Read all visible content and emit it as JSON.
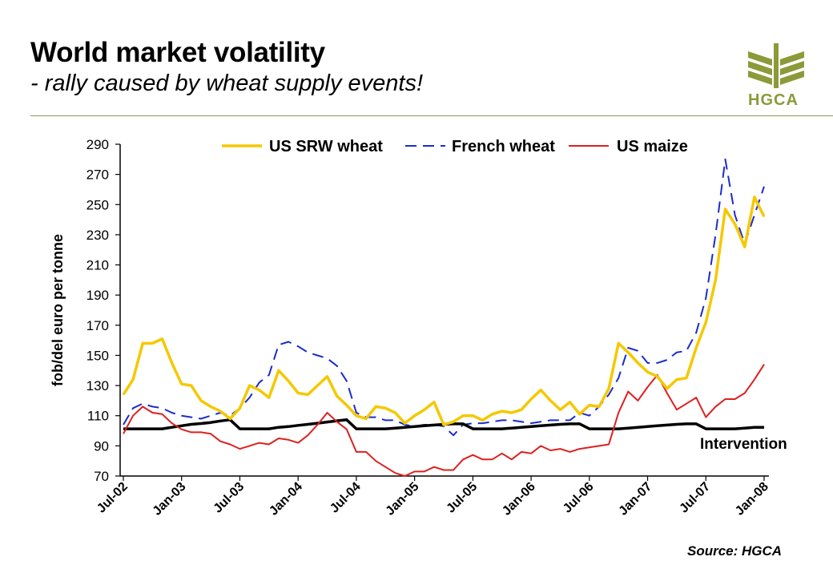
{
  "header": {
    "title": "World market volatility",
    "subtitle": "- rally caused by wheat supply events!"
  },
  "logo": {
    "text": "HGCA",
    "color": "#8c9a3a"
  },
  "source": "Source: HGCA",
  "chart_data": {
    "type": "line",
    "ylabel": "fob/del euro per tonne",
    "xlabel": "",
    "ylim": [
      70,
      290
    ],
    "yticks": [
      70,
      90,
      110,
      130,
      150,
      170,
      190,
      210,
      230,
      250,
      270,
      290
    ],
    "xticks": [
      "Jul-02",
      "Jan-03",
      "Jul-03",
      "Jan-04",
      "Jul-04",
      "Jan-05",
      "Jul-05",
      "Jan-06",
      "Jul-06",
      "Jan-07",
      "Jul-07",
      "Jan-08"
    ],
    "x_start": "Jul-02",
    "legend_position": "top",
    "annotation": "Intervention",
    "series": [
      {
        "name": "US SRW wheat",
        "color": "#f5c800",
        "style": "solid",
        "values": [
          124,
          134,
          158,
          158,
          161,
          145,
          131,
          130,
          120,
          116,
          113,
          108,
          115,
          130,
          127,
          122,
          140,
          133,
          125,
          124,
          130,
          136,
          123,
          117,
          110,
          108,
          116,
          115,
          112,
          105,
          110,
          114,
          119,
          104,
          106,
          110,
          110,
          107,
          111,
          113,
          112,
          114,
          121,
          127,
          120,
          114,
          119,
          111,
          117,
          116,
          128,
          158,
          152,
          145,
          139,
          136,
          128,
          134,
          135,
          155,
          172,
          200,
          247,
          237,
          222,
          255,
          242
        ],
        "points": 67
      },
      {
        "name": "French wheat",
        "color": "#1b2ccc",
        "style": "dashed",
        "values": [
          104,
          115,
          118,
          116,
          115,
          112,
          110,
          109,
          108,
          110,
          112,
          110,
          115,
          122,
          132,
          137,
          157,
          159,
          156,
          152,
          150,
          148,
          143,
          133,
          112,
          109,
          109,
          107,
          107,
          104,
          103,
          104,
          104,
          103,
          97,
          104,
          105,
          105,
          106,
          107,
          107,
          106,
          105,
          106,
          107,
          107,
          107,
          112,
          110,
          116,
          124,
          135,
          155,
          153,
          145,
          145,
          147,
          152,
          153,
          165,
          188,
          230,
          280,
          243,
          224,
          243,
          262
        ],
        "points": 67
      },
      {
        "name": "US maize",
        "color": "#dd2020",
        "style": "solid",
        "values": [
          98,
          110,
          116,
          112,
          111,
          105,
          101,
          99,
          99,
          98,
          93,
          91,
          88,
          90,
          92,
          91,
          95,
          94,
          92,
          97,
          104,
          112,
          106,
          101,
          86,
          86,
          80,
          76,
          72,
          70,
          73,
          73,
          76,
          74,
          74,
          81,
          84,
          81,
          81,
          85,
          81,
          86,
          85,
          90,
          87,
          88,
          86,
          88,
          89,
          90,
          91,
          112,
          126,
          120,
          129,
          137,
          125,
          114,
          118,
          122,
          109,
          116,
          121,
          121,
          125,
          134,
          144
        ],
        "points": 67
      },
      {
        "name": "Intervention",
        "color": "#000000",
        "style": "solid",
        "values": [
          101.3,
          101.3,
          101.3,
          101.3,
          101.3,
          102.3,
          103.3,
          104.3,
          104.8,
          105.5,
          106.5,
          107.3,
          101.3,
          101.3,
          101.3,
          101.3,
          102.3,
          102.8,
          103.6,
          104.3,
          105.0,
          105.8,
          106.6,
          107.3,
          101.3,
          101.3,
          101.3,
          101.3,
          101.8,
          102.3,
          102.8,
          103.3,
          103.8,
          104.3,
          104.6,
          104.6,
          101.3,
          101.3,
          101.3,
          101.3,
          101.8,
          102.3,
          102.8,
          103.3,
          103.8,
          104.3,
          104.6,
          104.6,
          101.3,
          101.3,
          101.3,
          101.3,
          101.8,
          102.3,
          102.8,
          103.3,
          103.8,
          104.3,
          104.6,
          104.6,
          101.3,
          101.3,
          101.3,
          101.3,
          101.8,
          102.3,
          102.3
        ],
        "points": 67
      }
    ]
  }
}
